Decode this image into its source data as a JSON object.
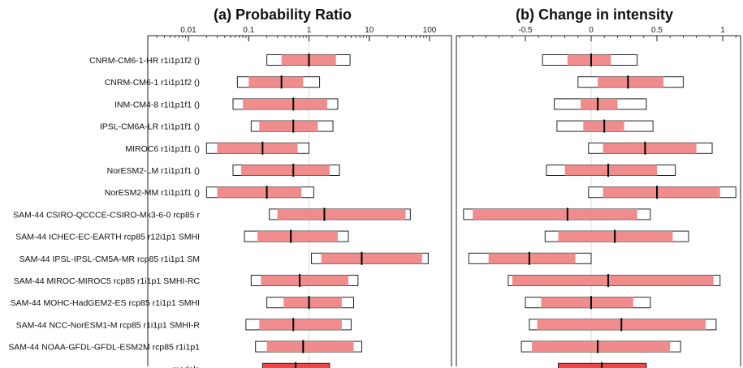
{
  "chart_data": [
    {
      "type": "forest",
      "title": "(a) Probability Ratio",
      "scale": "log",
      "xlim": [
        0.001,
        100
      ],
      "tick_labels": [
        "0.01",
        "0.1",
        "1",
        "10",
        "100"
      ],
      "ticks": [
        0.01,
        0.1,
        1,
        10,
        100
      ],
      "reference_line": 1,
      "rows": [
        {
          "label": "CNRM-CM6-1-HR r1i1p1f2 ()",
          "best": 1.0,
          "ci": [
            0.35,
            2.8
          ],
          "total": [
            0.2,
            4.8
          ]
        },
        {
          "label": "CNRM-CM6-1 r1i1p1f2 ()",
          "best": 0.35,
          "ci": [
            0.1,
            0.8
          ],
          "total": [
            0.065,
            1.5
          ]
        },
        {
          "label": "INM-CM4-8 r1i1p1f1 ()",
          "best": 0.55,
          "ci": [
            0.08,
            2.0
          ],
          "total": [
            0.055,
            3.0
          ]
        },
        {
          "label": "IPSL-CM6A-LR r1i1p1f1 ()",
          "best": 0.55,
          "ci": [
            0.15,
            1.4
          ],
          "total": [
            0.11,
            2.5
          ]
        },
        {
          "label": "MIROC6 r1i1p1f1 ()",
          "best": 0.17,
          "ci": [
            0.03,
            0.65
          ],
          "total": [
            0.02,
            1.0
          ]
        },
        {
          "label": "NorESM2-LM r1i1p1f1 ()",
          "best": 0.55,
          "ci": [
            0.075,
            2.2
          ],
          "total": [
            0.055,
            3.2
          ]
        },
        {
          "label": "NorESM2-MM r1i1p1f1 ()",
          "best": 0.2,
          "ci": [
            0.03,
            0.75
          ],
          "total": [
            0.02,
            1.2
          ]
        },
        {
          "label": "SAM-44 CSIRO-QCCCE-CSIRO-Mk3-6-0 rcp85 r",
          "best": 1.8,
          "ci": [
            0.3,
            40
          ],
          "total": [
            0.22,
            48
          ]
        },
        {
          "label": "SAM-44 ICHEC-EC-EARTH rcp85 r12i1p1 SMHI",
          "best": 0.5,
          "ci": [
            0.14,
            3.0
          ],
          "total": [
            0.085,
            4.5
          ]
        },
        {
          "label": "SAM-44 IPSL-IPSL-CM5A-MR rcp85 r1i1p1 SM",
          "best": 7.5,
          "ci": [
            1.6,
            75
          ],
          "total": [
            1.1,
            95
          ]
        },
        {
          "label": "SAM-44 MIROC-MIROC5 rcp85 r1i1p1 SMHI-RC",
          "best": 0.7,
          "ci": [
            0.16,
            4.5
          ],
          "total": [
            0.11,
            6.5
          ]
        },
        {
          "label": "SAM-44 MOHC-HadGEM2-ES rcp85 r1i1p1 SMHI",
          "best": 1.0,
          "ci": [
            0.38,
            3.5
          ],
          "total": [
            0.2,
            5.5
          ]
        },
        {
          "label": "SAM-44 NCC-NorESM1-M rcp85 r1i1p1 SMHI-R",
          "best": 0.55,
          "ci": [
            0.15,
            3.5
          ],
          "total": [
            0.09,
            5.0
          ]
        },
        {
          "label": "SAM-44 NOAA-GFDL-GFDL-ESM2M rcp85 r1i1p1",
          "best": 0.8,
          "ci": [
            0.2,
            5.5
          ],
          "total": [
            0.13,
            7.5
          ]
        },
        {
          "label": "models",
          "best": 0.6,
          "ci": [
            0.17,
            2.2
          ],
          "total": null,
          "synthesis": true
        }
      ]
    },
    {
      "type": "forest",
      "title": "(b) Change in intensity",
      "scale": "linear",
      "xlim": [
        -1.0,
        1.1
      ],
      "tick_labels": [
        "-0.5",
        "0",
        "0.5",
        "1"
      ],
      "ticks": [
        -0.5,
        0,
        0.5,
        1
      ],
      "reference_line": 0,
      "rows": [
        {
          "label": "CNRM-CM6-1-HR r1i1p1f2 ()",
          "best": 0.0,
          "ci": [
            -0.18,
            0.15
          ],
          "total": [
            -0.37,
            0.35
          ]
        },
        {
          "label": "CNRM-CM6-1 r1i1p1f2 ()",
          "best": 0.28,
          "ci": [
            0.05,
            0.55
          ],
          "total": [
            -0.1,
            0.7
          ]
        },
        {
          "label": "INM-CM4-8 r1i1p1f1 ()",
          "best": 0.05,
          "ci": [
            -0.08,
            0.2
          ],
          "total": [
            -0.28,
            0.42
          ]
        },
        {
          "label": "IPSL-CM6A-LR r1i1p1f1 ()",
          "best": 0.1,
          "ci": [
            -0.06,
            0.25
          ],
          "total": [
            -0.26,
            0.47
          ]
        },
        {
          "label": "MIROC6 r1i1p1f1 ()",
          "best": 0.41,
          "ci": [
            0.09,
            0.8
          ],
          "total": [
            -0.02,
            0.92
          ]
        },
        {
          "label": "NorESM2-LM r1i1p1f1 ()",
          "best": 0.13,
          "ci": [
            -0.2,
            0.5
          ],
          "total": [
            -0.34,
            0.64
          ]
        },
        {
          "label": "NorESM2-MM r1i1p1f1 ()",
          "best": 0.5,
          "ci": [
            0.09,
            0.98
          ],
          "total": [
            -0.02,
            1.1
          ]
        },
        {
          "label": "SAM-44 CSIRO-QCCCE-CSIRO-Mk3-6-0 rcp85 r",
          "best": -0.18,
          "ci": [
            -0.9,
            0.35
          ],
          "total": [
            -0.97,
            0.45
          ]
        },
        {
          "label": "SAM-44 ICHEC-EC-EARTH rcp85 r12i1p1 SMHI",
          "best": 0.18,
          "ci": [
            -0.25,
            0.62
          ],
          "total": [
            -0.35,
            0.74
          ]
        },
        {
          "label": "SAM-44 IPSL-IPSL-CM5A-MR rcp85 r1i1p1 SM",
          "best": -0.47,
          "ci": [
            -0.78,
            -0.12
          ],
          "total": [
            -0.93,
            0.0
          ]
        },
        {
          "label": "SAM-44 MIROC-MIROC5 rcp85 r1i1p1 SMHI-RC",
          "best": 0.13,
          "ci": [
            -0.6,
            0.93
          ],
          "total": [
            -0.63,
            0.98
          ]
        },
        {
          "label": "SAM-44 MOHC-HadGEM2-ES rcp85 r1i1p1 SMHI",
          "best": 0.0,
          "ci": [
            -0.38,
            0.32
          ],
          "total": [
            -0.5,
            0.45
          ]
        },
        {
          "label": "SAM-44 NCC-NorESM1-M rcp85 r1i1p1 SMHI-R",
          "best": 0.23,
          "ci": [
            -0.41,
            0.87
          ],
          "total": [
            -0.47,
            0.95
          ]
        },
        {
          "label": "SAM-44 NOAA-GFDL-GFDL-ESM2M rcp85 r1i1p1",
          "best": 0.05,
          "ci": [
            -0.45,
            0.6
          ],
          "total": [
            -0.53,
            0.68
          ]
        },
        {
          "label": "models",
          "best": 0.08,
          "ci": [
            -0.25,
            0.42
          ],
          "total": null,
          "synthesis": true
        }
      ]
    }
  ],
  "colors": {
    "ci_fill": "#f08c8c",
    "synthesis_fill": "#f04848",
    "total_stroke": "#222222",
    "grid": "#dddddd"
  }
}
